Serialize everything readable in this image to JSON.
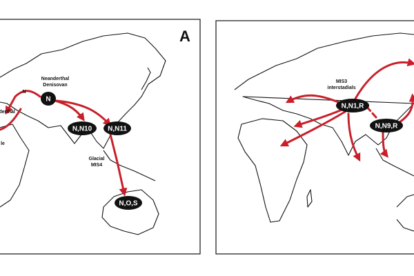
{
  "panels": [
    {
      "label": "A",
      "annotations": [
        "Neanderthal",
        "Denisovan",
        "Glacial",
        "MIS4",
        "nderthal",
        "le",
        "N"
      ],
      "nodes": [
        "N",
        "N,N10",
        "N,N11",
        "N,O,S"
      ]
    },
    {
      "annotations": [
        "MIS3",
        "interstadials"
      ],
      "nodes": [
        "N,N1,R",
        "N,N9,R"
      ]
    }
  ]
}
